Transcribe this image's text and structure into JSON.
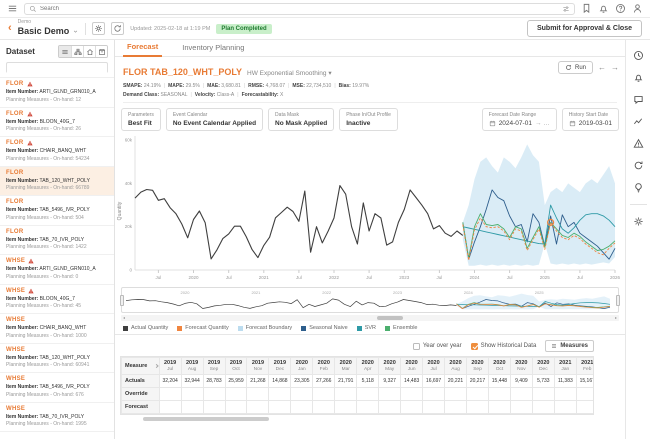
{
  "topbar": {
    "search_placeholder": "Search"
  },
  "subbar": {
    "breadcrumb": "Demo",
    "plan_title": "Basic Demo",
    "updated": "Updated: 2025-02-18 at 1:19 PM",
    "badge": "Plan Completed",
    "submit_label": "Submit for Approval & Close"
  },
  "sidebar": {
    "title": "Dataset",
    "search_value": "",
    "items": [
      {
        "label": "FLOR",
        "warn": true,
        "item_number": "ARTI_GLND_GRN010_A",
        "on_hand": "12",
        "selected": false
      },
      {
        "label": "FLOR",
        "warn": true,
        "item_number": "BLOON_40G_7",
        "on_hand": "26",
        "selected": false
      },
      {
        "label": "FLOR",
        "warn": true,
        "item_number": "CHAIR_BANQ_WHT",
        "on_hand": "54234",
        "selected": false
      },
      {
        "label": "FLOR",
        "warn": false,
        "item_number": "TAB_120_WHT_POLY",
        "on_hand": "66789",
        "selected": true
      },
      {
        "label": "FLOR",
        "warn": false,
        "item_number": "TAB_5496_IVR_POLY",
        "on_hand": "504",
        "selected": false
      },
      {
        "label": "FLOR",
        "warn": false,
        "item_number": "TAB_70_IVR_POLY",
        "on_hand": "1422",
        "selected": false
      },
      {
        "label": "WHSE",
        "warn": true,
        "item_number": "ARTI_GLND_GRN010_A",
        "on_hand": "0",
        "selected": false
      },
      {
        "label": "WHSE",
        "warn": true,
        "item_number": "BLOON_40G_7",
        "on_hand": "45",
        "selected": false
      },
      {
        "label": "WHSE",
        "warn": false,
        "item_number": "CHAIR_BANQ_WHT",
        "on_hand": "1000",
        "selected": false
      },
      {
        "label": "WHSE",
        "warn": false,
        "item_number": "TAB_120_WHT_POLY",
        "on_hand": "60941",
        "selected": false
      },
      {
        "label": "WHSE",
        "warn": false,
        "item_number": "TAB_5496_IVR_POLY",
        "on_hand": "676",
        "selected": false
      },
      {
        "label": "WHSE",
        "warn": false,
        "item_number": "TAB_70_IVR_POLY",
        "on_hand": "1995",
        "selected": false
      }
    ],
    "item_number_prefix": "Item Number:",
    "on_hand_prefix": "Planning Measures - On-hand:"
  },
  "tabs": [
    {
      "label": "Forecast",
      "active": true
    },
    {
      "label": "Inventory Planning",
      "active": false
    }
  ],
  "forecast_header": {
    "title": "FLOR TAB_120_WHT_POLY",
    "model": "HW Exponential Smoothing",
    "run_label": "Run",
    "stats": [
      [
        "SMAPE:",
        "24.19%"
      ],
      [
        "MAPE:",
        "29.5%"
      ],
      [
        "MAE:",
        "3,680.81"
      ],
      [
        "RMSE:",
        "4,768.07"
      ],
      [
        "MSE:",
        "22,734,510"
      ],
      [
        "Bias:",
        "19.97%"
      ]
    ],
    "classes": [
      [
        "Demand Class:",
        "SEASONAL"
      ],
      [
        "Velocity:",
        "Class-A"
      ],
      [
        "Forecastability:",
        "X"
      ]
    ]
  },
  "cards": [
    {
      "label": "Parameters",
      "value": "Best Fit"
    },
    {
      "label": "Event Calendar",
      "value": "No Event Calendar Applied"
    },
    {
      "label": "Data Mask",
      "value": "No Mask Applied"
    },
    {
      "label": "Phase In/Out Profile",
      "value": "Inactive"
    },
    {
      "label": "Forecast Date Range",
      "value": "2024-07-01",
      "suffix": "→  …"
    },
    {
      "label": "History Start Date",
      "value": "2019-03-01"
    }
  ],
  "legend": [
    {
      "label": "Actual Quantity",
      "color": "#3f3f3f"
    },
    {
      "label": "Forecast Quantity",
      "color": "#f0853f"
    },
    {
      "label": "Forecast Boundary",
      "color": "#bcdcef"
    },
    {
      "label": "Seasonal Naive",
      "color": "#2e5e8c"
    },
    {
      "label": "SVR",
      "color": "#2e9aa6"
    },
    {
      "label": "Ensemble",
      "color": "#4caf6e"
    }
  ],
  "table_controls": {
    "yoy_label": "Year over year",
    "yoy_checked": false,
    "hist_label": "Show Historical Data",
    "hist_checked": true,
    "measures_label": "Measures"
  },
  "table": {
    "measure_header": "Measure",
    "columns": [
      {
        "year": "2019",
        "month": "Jul"
      },
      {
        "year": "2019",
        "month": "Aug"
      },
      {
        "year": "2019",
        "month": "Sep"
      },
      {
        "year": "2019",
        "month": "Oct"
      },
      {
        "year": "2019",
        "month": "Nov"
      },
      {
        "year": "2019",
        "month": "Dec"
      },
      {
        "year": "2020",
        "month": "Jan"
      },
      {
        "year": "2020",
        "month": "Feb"
      },
      {
        "year": "2020",
        "month": "Mar"
      },
      {
        "year": "2020",
        "month": "Apr"
      },
      {
        "year": "2020",
        "month": "May"
      },
      {
        "year": "2020",
        "month": "Jun"
      },
      {
        "year": "2020",
        "month": "Jul"
      },
      {
        "year": "2020",
        "month": "Aug"
      },
      {
        "year": "2020",
        "month": "Sep"
      },
      {
        "year": "2020",
        "month": "Oct"
      },
      {
        "year": "2020",
        "month": "Nov"
      },
      {
        "year": "2020",
        "month": "Dec"
      },
      {
        "year": "2021",
        "month": "Jan"
      },
      {
        "year": "2021",
        "month": "Feb"
      },
      {
        "year": "2021",
        "month": "Mar"
      }
    ],
    "rows": [
      {
        "label": "Actuals",
        "values": [
          "32,204",
          "32,944",
          "28,783",
          "25,959",
          "21,268",
          "14,868",
          "23,305",
          "27,266",
          "21,791",
          "5,118",
          "9,327",
          "14,483",
          "16,697",
          "20,221",
          "20,217",
          "15,448",
          "9,409",
          "5,733",
          "11,383",
          "15,167",
          "24,127"
        ]
      },
      {
        "label": "Override",
        "values": []
      },
      {
        "label": "Forecast",
        "values": []
      }
    ]
  },
  "chart_data": {
    "type": "line",
    "title": "Forecast chart for FLOR TAB_120_WHT_POLY",
    "ylabel": "Quantity",
    "ylim": [
      0,
      65000
    ],
    "y_ticks": [
      "0",
      "20k",
      "40k",
      "60k"
    ],
    "x_start": "2019-03",
    "x_end": "2026-01",
    "n_points": 83,
    "x_tick_indices": [
      4,
      10,
      16,
      22,
      28,
      34,
      40,
      46,
      52,
      58,
      64,
      70,
      76,
      82
    ],
    "x_tick_labels": [
      "Jul",
      "2020",
      "Jul",
      "2021",
      "Jul",
      "2022",
      "Jul",
      "2023",
      "Jul",
      "2024",
      "Jul",
      "2025",
      "Jul",
      "2026"
    ],
    "grid": false,
    "legend_position": "bottom",
    "series": [
      {
        "name": "Actual Quantity",
        "color": "#3f3f3f",
        "dash": false,
        "start": 0,
        "values": [
          33200,
          36000,
          37200,
          36800,
          32204,
          32944,
          28783,
          25959,
          21268,
          14868,
          23305,
          27266,
          21791,
          5118,
          9327,
          14483,
          16697,
          20221,
          20217,
          15448,
          9409,
          5733,
          11383,
          15167,
          24127,
          26500,
          29000,
          27000,
          22500,
          36500,
          8200,
          20000,
          12500,
          18000,
          24000,
          39000,
          35000,
          20000,
          12000,
          31000,
          18000,
          26000,
          24000,
          11500,
          13000,
          22000,
          28000,
          37000,
          33500,
          30000,
          26000,
          19000,
          20500,
          17000,
          15500,
          18000,
          16000
        ]
      },
      {
        "name": "Seasonal Naive",
        "color": "#2e5e8c",
        "dash": false,
        "start": 56,
        "values": [
          22000,
          5000,
          13000,
          20000,
          28000,
          37000,
          33500,
          32000,
          25000,
          20000,
          21000,
          13000,
          26000,
          22000,
          11000,
          25000,
          12000,
          25500,
          20000,
          22000,
          17000,
          15000,
          13000,
          11000,
          8000,
          5000,
          10000
        ]
      },
      {
        "name": "SVR",
        "color": "#2e9aa6",
        "dash": false,
        "start": 56,
        "values": [
          20000,
          19400,
          18800,
          18200,
          17600,
          17000,
          16400,
          15800,
          15200,
          14600,
          14000,
          13400,
          12800,
          12200,
          12000,
          30000,
          24000,
          19000,
          17000,
          19500,
          23000,
          25500,
          26000,
          26000,
          25000,
          23000,
          20000
        ]
      },
      {
        "name": "Ensemble",
        "color": "#4caf6e",
        "dash": false,
        "start": 56,
        "values": [
          22000,
          5500,
          20000,
          26000,
          21000,
          20500,
          21000,
          19000,
          15000,
          20000,
          19000,
          10000,
          15000,
          20000,
          10500,
          22000,
          19000,
          16000,
          15000,
          17000,
          15500,
          13000,
          11000,
          9000,
          9500,
          11000,
          13500
        ]
      },
      {
        "name": "Forecast Quantity",
        "color": "#f0853f",
        "dash": true,
        "start": 56,
        "values": [
          21000,
          4500,
          18500,
          24000,
          20000,
          19500,
          20000,
          18000,
          14000,
          19000,
          18000,
          9000,
          14000,
          19000,
          9500,
          22000,
          18000,
          15000,
          14000,
          16000,
          14500,
          12000,
          10000,
          8000,
          7000,
          10000,
          12500
        ]
      }
    ],
    "band": {
      "name": "Forecast Boundary",
      "color": "#bcdcef",
      "start": 56,
      "upper": [
        22000,
        30000,
        42000,
        50000,
        52000,
        48000,
        45000,
        52000,
        50000,
        47000,
        52000,
        58000,
        53000,
        50000,
        30000,
        36000,
        38000,
        36000,
        40000,
        38000,
        36000,
        40000,
        42000,
        40000,
        44000,
        48000,
        40000
      ],
      "lower": [
        14000,
        2000,
        2000,
        2500,
        2000,
        2500,
        2000,
        2500,
        2000,
        2500,
        2000,
        2500,
        2000,
        2500,
        12000,
        3000,
        2500,
        3000,
        2500,
        3000,
        2500,
        3000,
        2500,
        3000,
        3500,
        3000,
        6000
      ]
    },
    "marker": {
      "index": 71,
      "value": 22000,
      "color": "#f0853f"
    },
    "mini_year_labels": [
      "2020",
      "2021",
      "2022",
      "2023",
      "2024",
      "2025"
    ],
    "mini_year_indices": [
      10,
      22,
      34,
      46,
      58,
      70
    ]
  },
  "colors": {
    "accent": "#e87b35",
    "badge_bg": "#c9efca",
    "badge_text": "#1e7b2f",
    "warn": "#cf4436",
    "checkbox_checked": "#ef8e3d"
  }
}
